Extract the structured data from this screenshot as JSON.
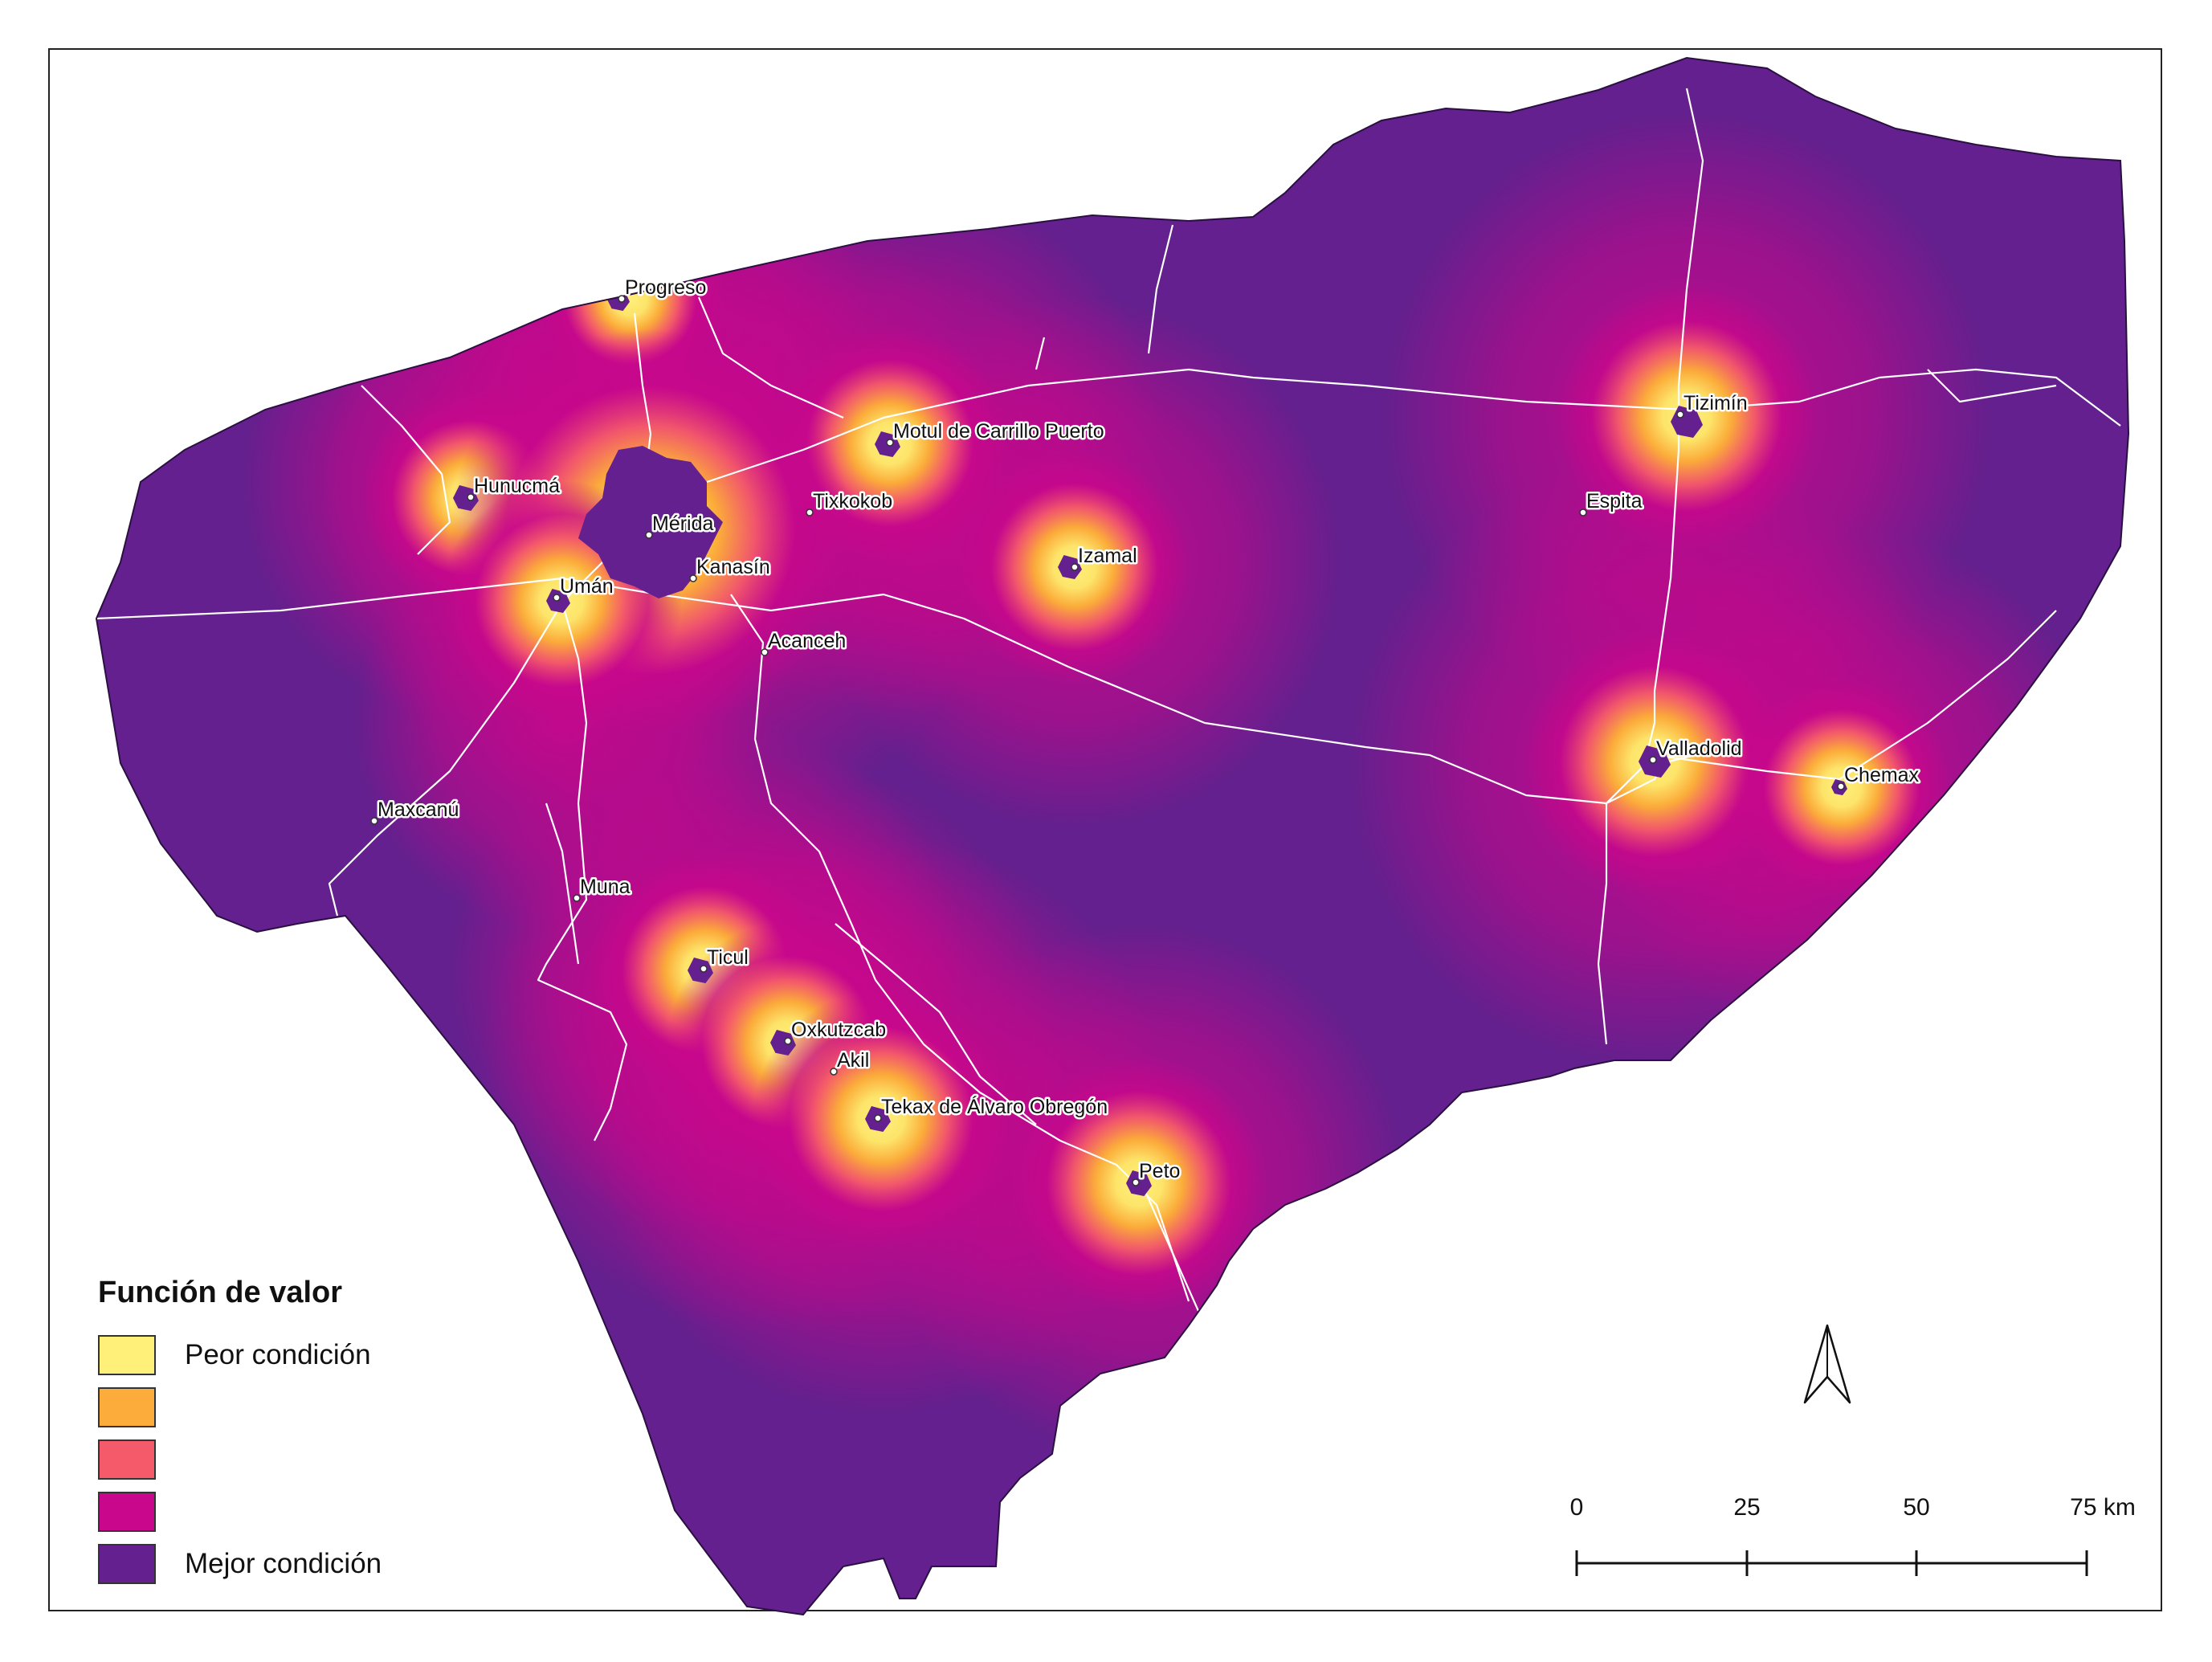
{
  "legend": {
    "title": "Función de valor",
    "items": [
      {
        "label": "Peor condición",
        "color": "#fff07a"
      },
      {
        "label": "",
        "color": "#fbac3a"
      },
      {
        "label": "",
        "color": "#f45a6a"
      },
      {
        "label": "",
        "color": "#c8078c"
      },
      {
        "label": "Mejor condición",
        "color": "#64208e"
      }
    ]
  },
  "cities": [
    {
      "name": "Progreso"
    },
    {
      "name": "Motul de Carrillo Puerto"
    },
    {
      "name": "Hunucmá"
    },
    {
      "name": "Tixkokob"
    },
    {
      "name": "Mérida"
    },
    {
      "name": "Kanasín"
    },
    {
      "name": "Izamal"
    },
    {
      "name": "Umán"
    },
    {
      "name": "Acanceh"
    },
    {
      "name": "Tizimín"
    },
    {
      "name": "Espita"
    },
    {
      "name": "Valladolid"
    },
    {
      "name": "Chemax"
    },
    {
      "name": "Maxcanú"
    },
    {
      "name": "Muna"
    },
    {
      "name": "Ticul"
    },
    {
      "name": "Oxkutzcab"
    },
    {
      "name": "Akil"
    },
    {
      "name": "Tekax de Álvaro Obregón"
    },
    {
      "name": "Peto"
    }
  ],
  "scale_bar": {
    "labels": [
      "0",
      "25",
      "50",
      "75 km"
    ]
  },
  "north_arrow": {
    "icon": "north-arrow-icon"
  },
  "colors": {
    "base": "#64208e",
    "mid": "#c8078c",
    "hot": "#fff07a",
    "roads": "#ffffff"
  }
}
